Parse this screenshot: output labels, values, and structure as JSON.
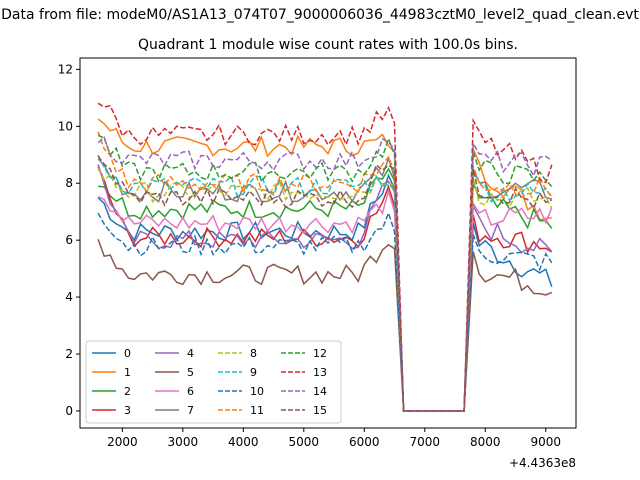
{
  "figure": {
    "suptitle": "Data from file: modeM0/AS1A13_074T07_9000006036_44983cztM0_level2_quad_clean.evt",
    "offset_label": "+4.4363e8"
  },
  "chart_data": {
    "type": "line",
    "title": "Quadrant 1 module wise count rates with 100.0s bins.",
    "xlabel": "",
    "ylabel": "",
    "x_offset": 443630000,
    "xlim": [
      1300,
      9500
    ],
    "ylim": [
      -0.6,
      12.4
    ],
    "xticks": [
      2000,
      3000,
      4000,
      5000,
      6000,
      7000,
      8000,
      9000
    ],
    "yticks": [
      0,
      2,
      4,
      6,
      8,
      10,
      12
    ],
    "grid": false,
    "legend": {
      "loc": "lower left",
      "ncol": 4
    },
    "gap": {
      "start": 6650,
      "end": 7650
    },
    "series": [
      {
        "name": "0",
        "color": "#1f77b4",
        "dash": "solid",
        "base": 6.3,
        "start": 7.5,
        "end": 8.2,
        "post": 6.0,
        "last": 4.5
      },
      {
        "name": "1",
        "color": "#ff7f0e",
        "dash": "solid",
        "base": 9.3,
        "start": 10.3,
        "end": 9.5,
        "post": 8.6,
        "last": 6.8
      },
      {
        "name": "2",
        "color": "#2ca02c",
        "dash": "solid",
        "base": 7.1,
        "start": 8.2,
        "end": 8.5,
        "post": 7.4,
        "last": 6.5
      },
      {
        "name": "3",
        "color": "#d62728",
        "dash": "solid",
        "base": 6.1,
        "start": 8.4,
        "end": 7.6,
        "post": 6.3,
        "last": 5.8
      },
      {
        "name": "4",
        "color": "#9467bd",
        "dash": "solid",
        "base": 6.0,
        "start": 8.5,
        "end": 8.1,
        "post": 6.6,
        "last": 5.5
      },
      {
        "name": "5",
        "color": "#8c564b",
        "dash": "solid",
        "base": 4.8,
        "start": 6.0,
        "end": 6.1,
        "post": 5.0,
        "last": 4.3
      },
      {
        "name": "6",
        "color": "#e377c2",
        "dash": "solid",
        "base": 6.6,
        "start": 7.8,
        "end": 7.4,
        "post": 6.7,
        "last": 6.9
      },
      {
        "name": "7",
        "color": "#7f7f7f",
        "dash": "solid",
        "base": 7.7,
        "start": 8.8,
        "end": 8.6,
        "post": 7.9,
        "last": 7.7
      },
      {
        "name": "8",
        "color": "#bcbd22",
        "dash": "dashed",
        "base": 7.7,
        "start": 8.4,
        "end": 8.3,
        "post": 7.6,
        "last": 7.4
      },
      {
        "name": "9",
        "color": "#17becf",
        "dash": "dashed",
        "base": 7.9,
        "start": 8.7,
        "end": 8.2,
        "post": 7.8,
        "last": 7.6
      },
      {
        "name": "10",
        "color": "#1f77b4",
        "dash": "dashed",
        "base": 5.8,
        "start": 7.1,
        "end": 6.7,
        "post": 5.6,
        "last": 5.2
      },
      {
        "name": "11",
        "color": "#ff7f0e",
        "dash": "dashed",
        "base": 8.0,
        "start": 9.6,
        "end": 8.8,
        "post": 8.0,
        "last": 7.8
      },
      {
        "name": "12",
        "color": "#2ca02c",
        "dash": "dashed",
        "base": 8.4,
        "start": 9.7,
        "end": 9.4,
        "post": 8.5,
        "last": 8.1
      },
      {
        "name": "13",
        "color": "#d62728",
        "dash": "dashed",
        "base": 9.7,
        "start": 11.0,
        "end": 10.5,
        "post": 9.6,
        "last": 8.3
      },
      {
        "name": "14",
        "color": "#9467bd",
        "dash": "dashed",
        "base": 8.8,
        "start": 9.6,
        "end": 9.6,
        "post": 8.8,
        "last": 8.6
      },
      {
        "name": "15",
        "color": "#8c564b",
        "dash": "dashed",
        "base": 7.5,
        "start": 9.2,
        "end": 8.9,
        "post": 7.9,
        "last": 7.2
      }
    ]
  }
}
